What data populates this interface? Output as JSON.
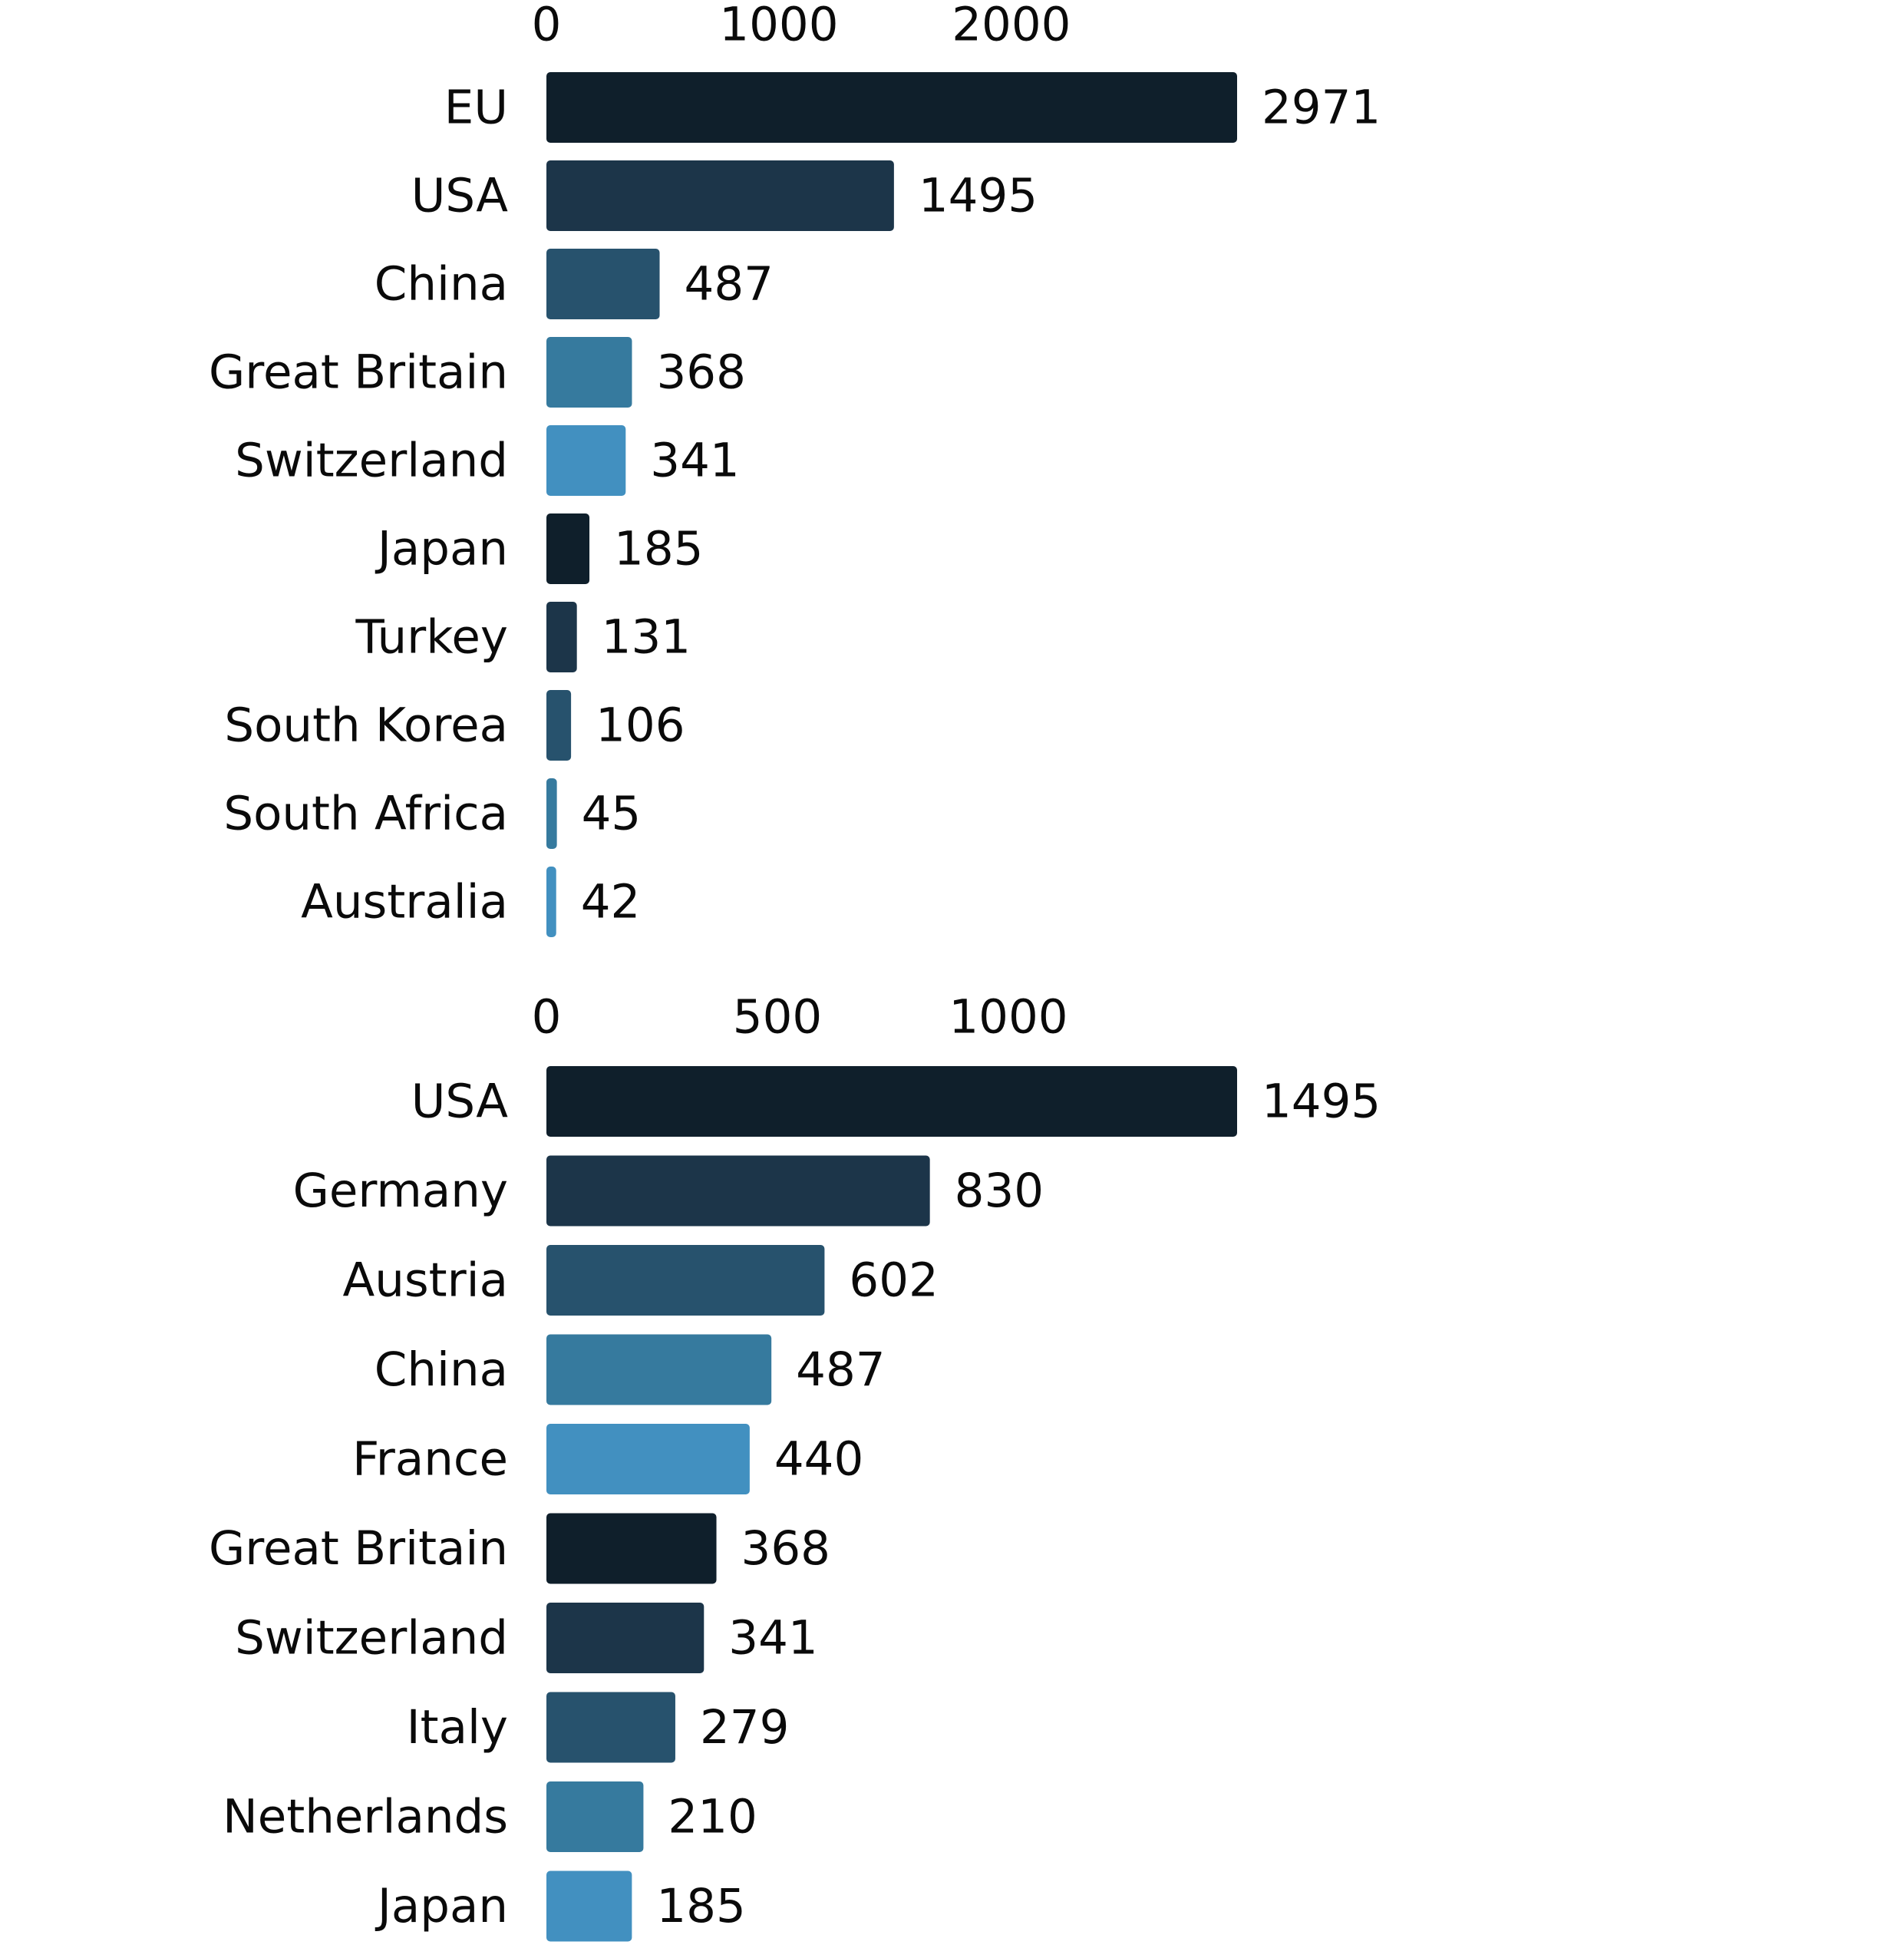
{
  "chart_data": [
    {
      "type": "bar",
      "orientation": "horizontal",
      "title": "",
      "xlabel": "",
      "ylabel": "",
      "categories": [
        "EU",
        "USA",
        "China",
        "Great Britain",
        "Switzerland",
        "Japan",
        "Turkey",
        "South Korea",
        "South Africa",
        "Australia"
      ],
      "values": [
        2971,
        1495,
        487,
        368,
        341,
        185,
        131,
        106,
        45,
        42
      ],
      "xlim": [
        0,
        2971
      ],
      "xticks": [
        0,
        1000,
        2000
      ],
      "xtick_labels": [
        "0",
        "1000",
        "2000"
      ],
      "axis_position": "top",
      "grid": false,
      "legend": "none",
      "colors": [
        "#0f1f2b",
        "#1c3549",
        "#27526d",
        "#367a9e",
        "#4290c0"
      ]
    },
    {
      "type": "bar",
      "orientation": "horizontal",
      "title": "",
      "xlabel": "",
      "ylabel": "",
      "categories": [
        "USA",
        "Germany",
        "Austria",
        "China",
        "France",
        "Great Britain",
        "Switzerland",
        "Italy",
        "Netherlands",
        "Japan"
      ],
      "values": [
        1495,
        830,
        602,
        487,
        440,
        368,
        341,
        279,
        210,
        185
      ],
      "xlim": [
        0,
        1495
      ],
      "xticks": [
        0,
        500,
        1000
      ],
      "xtick_labels": [
        "0",
        "500",
        "1000"
      ],
      "axis_position": "top",
      "grid": false,
      "legend": "none",
      "colors": [
        "#0f1f2b",
        "#1c3549",
        "#27526d",
        "#367a9e",
        "#4290c0"
      ]
    }
  ]
}
